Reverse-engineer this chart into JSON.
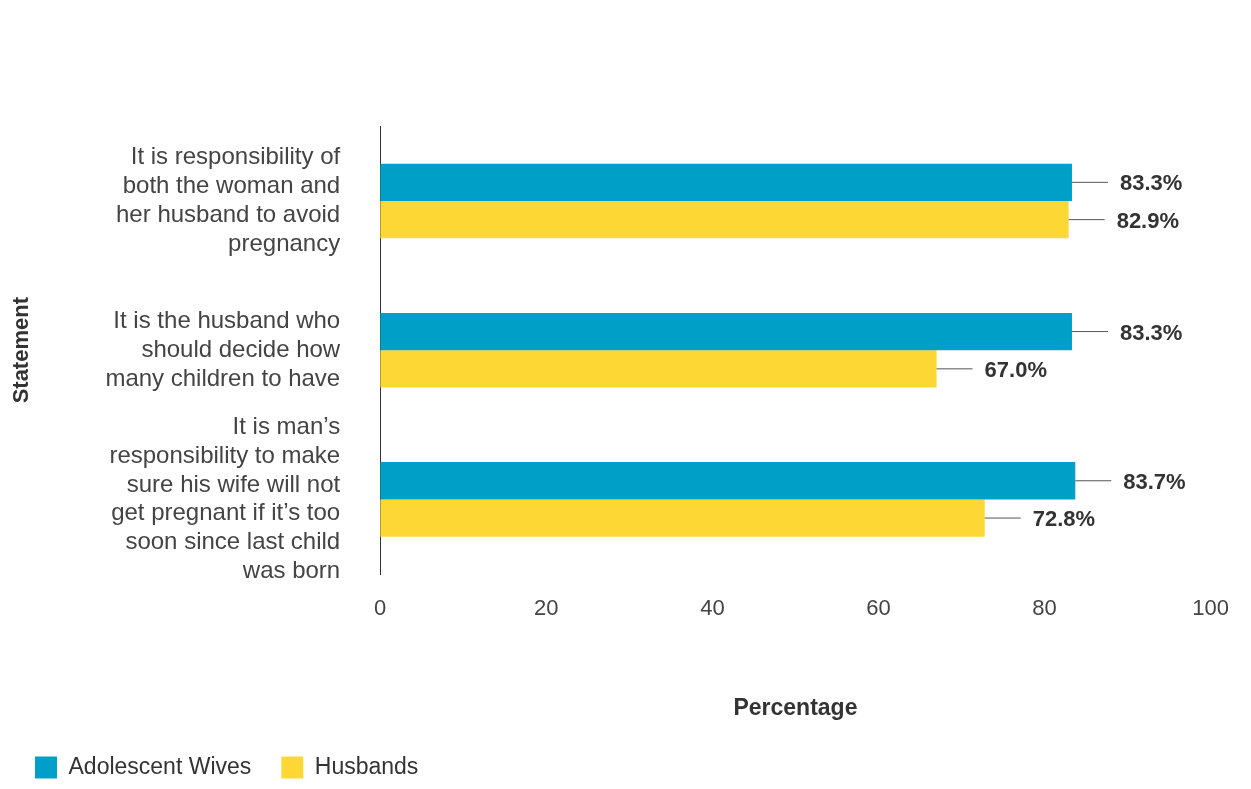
{
  "chart_data": {
    "type": "bar",
    "orientation": "horizontal",
    "xlabel": "Percentage",
    "ylabel": "Statement",
    "categories": [
      "It is responsibility of both the woman and her husband to avoid pregnancy",
      "It is the husband who should decide how many children to have",
      "It is man’s responsibility to make sure his wife will not get pregnant if it’s too soon since last child was born"
    ],
    "series": [
      {
        "name": "Adolescent Wives",
        "color": "#009fc7",
        "values": [
          83.3,
          83.3,
          83.7
        ],
        "value_labels": [
          "83.3%",
          "83.3%",
          "83.7%"
        ]
      },
      {
        "name": "Husbands",
        "color": "#fdd835",
        "values": [
          82.9,
          67.0,
          72.8
        ],
        "value_labels": [
          "82.9%",
          "67.0%",
          "72.8%"
        ]
      }
    ],
    "xlim": [
      0,
      100
    ],
    "xticks": [
      0,
      20,
      40,
      60,
      80,
      100
    ],
    "grid": false,
    "legend": "bottom left"
  }
}
